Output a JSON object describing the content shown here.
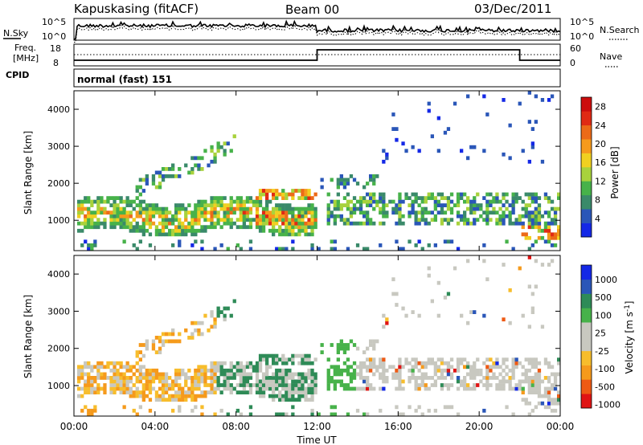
{
  "header": {
    "station": "Kapuskasing (fitACF)",
    "beam": "Beam 00",
    "date": "03/Dec/2011"
  },
  "noise_panel": {
    "left_label": "N.Sky",
    "right_label": "N.Search",
    "ticks_left": [
      "10^5",
      "10^0"
    ],
    "ticks_right": [
      "10^5",
      "10^0"
    ]
  },
  "freq_panel": {
    "left_label_1": "Freq.",
    "left_label_2": "[MHz]",
    "right_label": "Nave",
    "ticks_left": [
      "18",
      "8"
    ],
    "ticks_right": [
      "60",
      "0"
    ]
  },
  "cpid": {
    "label": "CPID",
    "value": "normal (fast) 151"
  },
  "colors": {
    "power_scale": [
      "#1428e6",
      "#2a56b8",
      "#3a8a6a",
      "#47b24a",
      "#a8d23c",
      "#f0d020",
      "#f59a1c",
      "#ec6a18",
      "#e02a14",
      "#cc0d0d"
    ],
    "velocity_scale": [
      "#e01414",
      "#ee5a14",
      "#f59a1c",
      "#f7bd2c",
      "#c8c8c0",
      "#c8c8c0",
      "#47b24a",
      "#2e8b57",
      "#2a56b8",
      "#1428e6"
    ]
  },
  "chart_data": [
    {
      "type": "heatmap",
      "title": "Power",
      "ylabel": "Slant Range [km]",
      "yticks": [
        "1000",
        "2000",
        "3000",
        "4000"
      ],
      "ylim": [
        180,
        4500
      ],
      "colorbar_label": "Power [dB]",
      "colorbar_ticks": [
        "4",
        "8",
        "12",
        "16",
        "20",
        "24",
        "28"
      ],
      "colorbar_range": [
        0,
        30
      ]
    },
    {
      "type": "heatmap",
      "title": "Velocity",
      "ylabel": "Slant Range [km]",
      "yticks": [
        "1000",
        "2000",
        "3000",
        "4000"
      ],
      "ylim": [
        180,
        4500
      ],
      "colorbar_label": "Velocity [m s",
      "colorbar_label_sup": "-1",
      "colorbar_label_end": "]",
      "colorbar_ticks": [
        "1000",
        "500",
        "100",
        "25",
        "-25",
        "-100",
        "-500",
        "-1000"
      ],
      "xlabel": "Time UT",
      "xticks": [
        "00:00",
        "04:00",
        "08:00",
        "12:00",
        "16:00",
        "20:00",
        "00:00"
      ],
      "xlim": [
        0,
        24
      ]
    }
  ]
}
